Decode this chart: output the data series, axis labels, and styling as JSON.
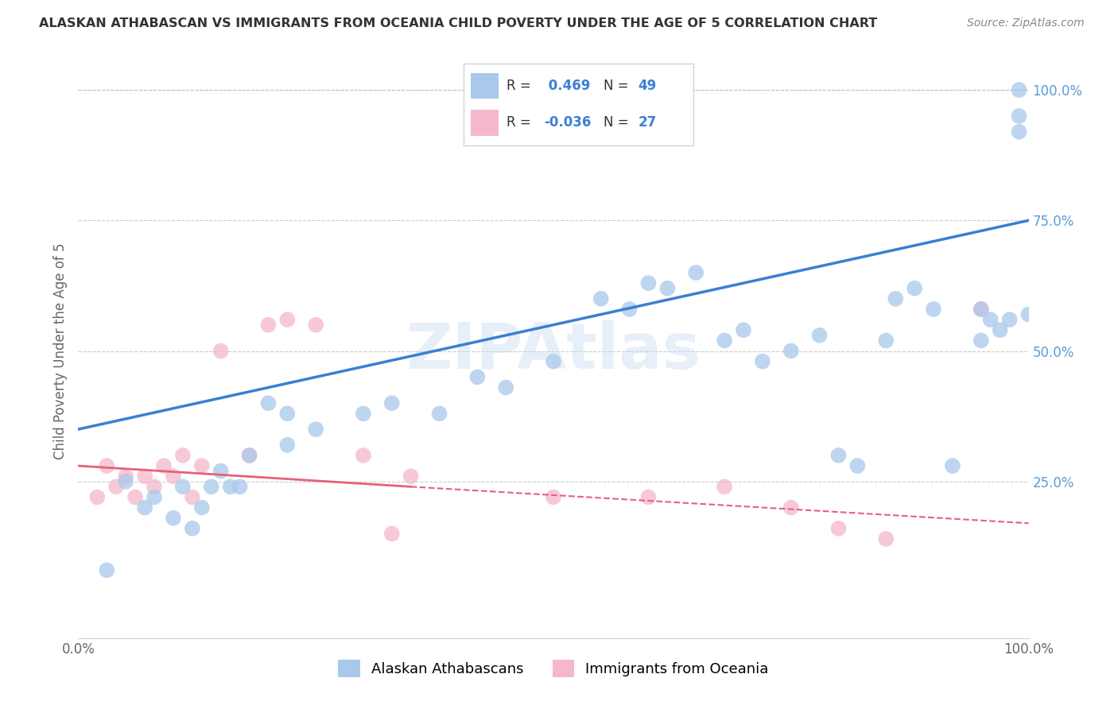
{
  "title": "ALASKAN ATHABASCAN VS IMMIGRANTS FROM OCEANIA CHILD POVERTY UNDER THE AGE OF 5 CORRELATION CHART",
  "source": "Source: ZipAtlas.com",
  "ylabel": "Child Poverty Under the Age of 5",
  "xlabel": "",
  "xlim": [
    0,
    100
  ],
  "ylim": [
    -5,
    105
  ],
  "xtick_labels": [
    "0.0%",
    "100.0%"
  ],
  "ytick_labels_right": [
    "25.0%",
    "50.0%",
    "75.0%",
    "100.0%"
  ],
  "ytick_values_right": [
    25,
    50,
    75,
    100
  ],
  "blue_r": 0.469,
  "blue_n": 49,
  "pink_r": -0.036,
  "pink_n": 27,
  "blue_color": "#a8c8ec",
  "pink_color": "#f5b8cb",
  "blue_line_color": "#3a7fd5",
  "pink_line_color": "#e8607a",
  "legend_label_blue": "Alaskan Athabascans",
  "legend_label_pink": "Immigrants from Oceania",
  "watermark": "ZIPAtlas",
  "blue_line_x0": 0,
  "blue_line_y0": 35,
  "blue_line_x1": 100,
  "blue_line_y1": 75,
  "pink_line_x0": 0,
  "pink_line_y0": 28,
  "pink_line_x1": 100,
  "pink_line_y1": 17,
  "blue_scatter_x": [
    3,
    5,
    7,
    8,
    10,
    11,
    12,
    13,
    14,
    15,
    16,
    17,
    18,
    20,
    22,
    22,
    25,
    30,
    33,
    38,
    42,
    45,
    50,
    55,
    58,
    60,
    62,
    65,
    68,
    70,
    72,
    75,
    78,
    80,
    82,
    85,
    86,
    88,
    90,
    92,
    95,
    95,
    96,
    97,
    98,
    99,
    99,
    99,
    100
  ],
  "blue_scatter_y": [
    8,
    25,
    20,
    22,
    18,
    24,
    16,
    20,
    24,
    27,
    24,
    24,
    30,
    40,
    38,
    32,
    35,
    38,
    40,
    38,
    45,
    43,
    48,
    60,
    58,
    63,
    62,
    65,
    52,
    54,
    48,
    50,
    53,
    30,
    28,
    52,
    60,
    62,
    58,
    28,
    58,
    52,
    56,
    54,
    56,
    100,
    95,
    92,
    57
  ],
  "pink_scatter_x": [
    2,
    3,
    4,
    5,
    6,
    7,
    8,
    9,
    10,
    11,
    12,
    13,
    15,
    18,
    20,
    22,
    25,
    30,
    35,
    50,
    60,
    68,
    75,
    80,
    85,
    95,
    33
  ],
  "pink_scatter_y": [
    22,
    28,
    24,
    26,
    22,
    26,
    24,
    28,
    26,
    30,
    22,
    28,
    50,
    30,
    55,
    56,
    55,
    30,
    26,
    22,
    22,
    24,
    20,
    16,
    14,
    58,
    15
  ]
}
